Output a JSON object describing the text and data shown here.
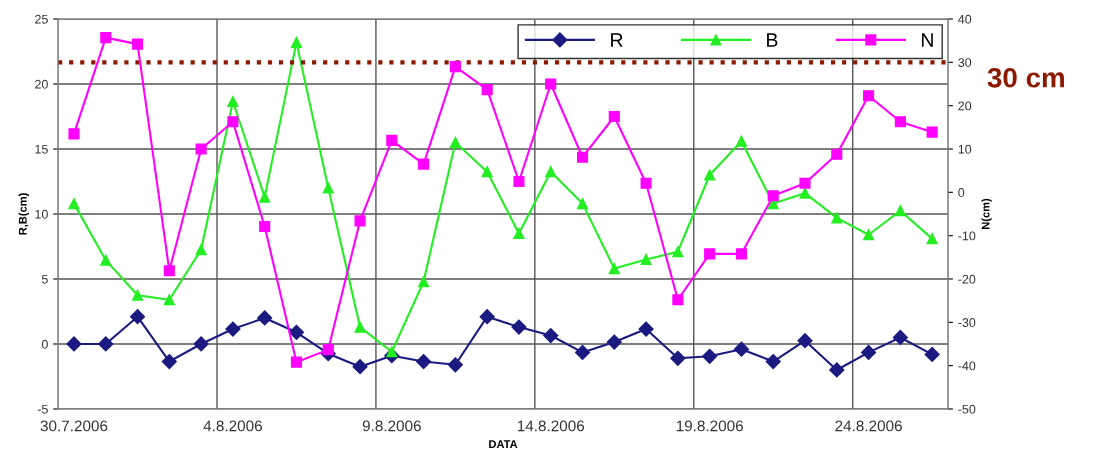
{
  "chart_data": {
    "type": "line",
    "xlabel": "DATA",
    "ylabel": "R,B(cm)",
    "y2label": "N(cm)",
    "categories": [
      "30.7.2006",
      null,
      null,
      null,
      null,
      "4.8.2006",
      null,
      null,
      null,
      null,
      "9.8.2006",
      null,
      null,
      null,
      null,
      "14.8.2006",
      null,
      null,
      null,
      null,
      "19.8.2006",
      null,
      null,
      null,
      null,
      "24.8.2006",
      null,
      null
    ],
    "series": [
      {
        "name": "R",
        "color": "#1a1a80",
        "marker": "diamond",
        "values": [
          0,
          0,
          2.1,
          -1.35,
          0,
          1.15,
          2.0,
          0.9,
          -0.75,
          -1.75,
          -0.9,
          -1.35,
          -1.6,
          2.1,
          1.3,
          0.65,
          -0.65,
          0.15,
          1.15,
          -1.1,
          -0.95,
          -0.4,
          -1.35,
          0.25,
          -2.0,
          -0.65,
          0.5,
          -0.8
        ]
      },
      {
        "name": "B",
        "color": "#22ee22",
        "marker": "triangle",
        "values": [
          10.8,
          6.45,
          3.75,
          3.4,
          7.25,
          18.65,
          11.3,
          23.2,
          12.0,
          1.3,
          -0.6,
          4.8,
          15.5,
          13.25,
          8.5,
          13.25,
          10.8,
          5.8,
          6.5,
          7.1,
          13.0,
          15.6,
          10.8,
          11.6,
          9.7,
          8.4,
          10.25,
          8.1
        ]
      },
      {
        "name": "N",
        "color": "#ff00ff",
        "marker": "square",
        "axis": "y2",
        "values": [
          13.5,
          35.7,
          34.2,
          -18.1,
          10.0,
          16.3,
          -7.9,
          -39.2,
          -36.3,
          -6.6,
          12.0,
          6.5,
          29.0,
          23.7,
          2.5,
          25.0,
          8.1,
          17.5,
          2.1,
          -24.8,
          -14.2,
          -14.2,
          -0.8,
          2.1,
          8.8,
          22.3,
          16.3,
          13.9
        ]
      }
    ],
    "ylim": [
      -5,
      25
    ],
    "yticks": [
      -5,
      0,
      5,
      10,
      15,
      20,
      25
    ],
    "y2lim": [
      -50,
      40
    ],
    "y2ticks": [
      -50,
      -40,
      -30,
      -20,
      -10,
      0,
      10,
      20,
      30,
      40
    ],
    "ref_lines": [
      {
        "axis": "y2",
        "value": 30,
        "label": "30 cm",
        "color": "#8b1a00",
        "line_style": "dotted"
      }
    ],
    "grid": true,
    "legend": "top right"
  }
}
